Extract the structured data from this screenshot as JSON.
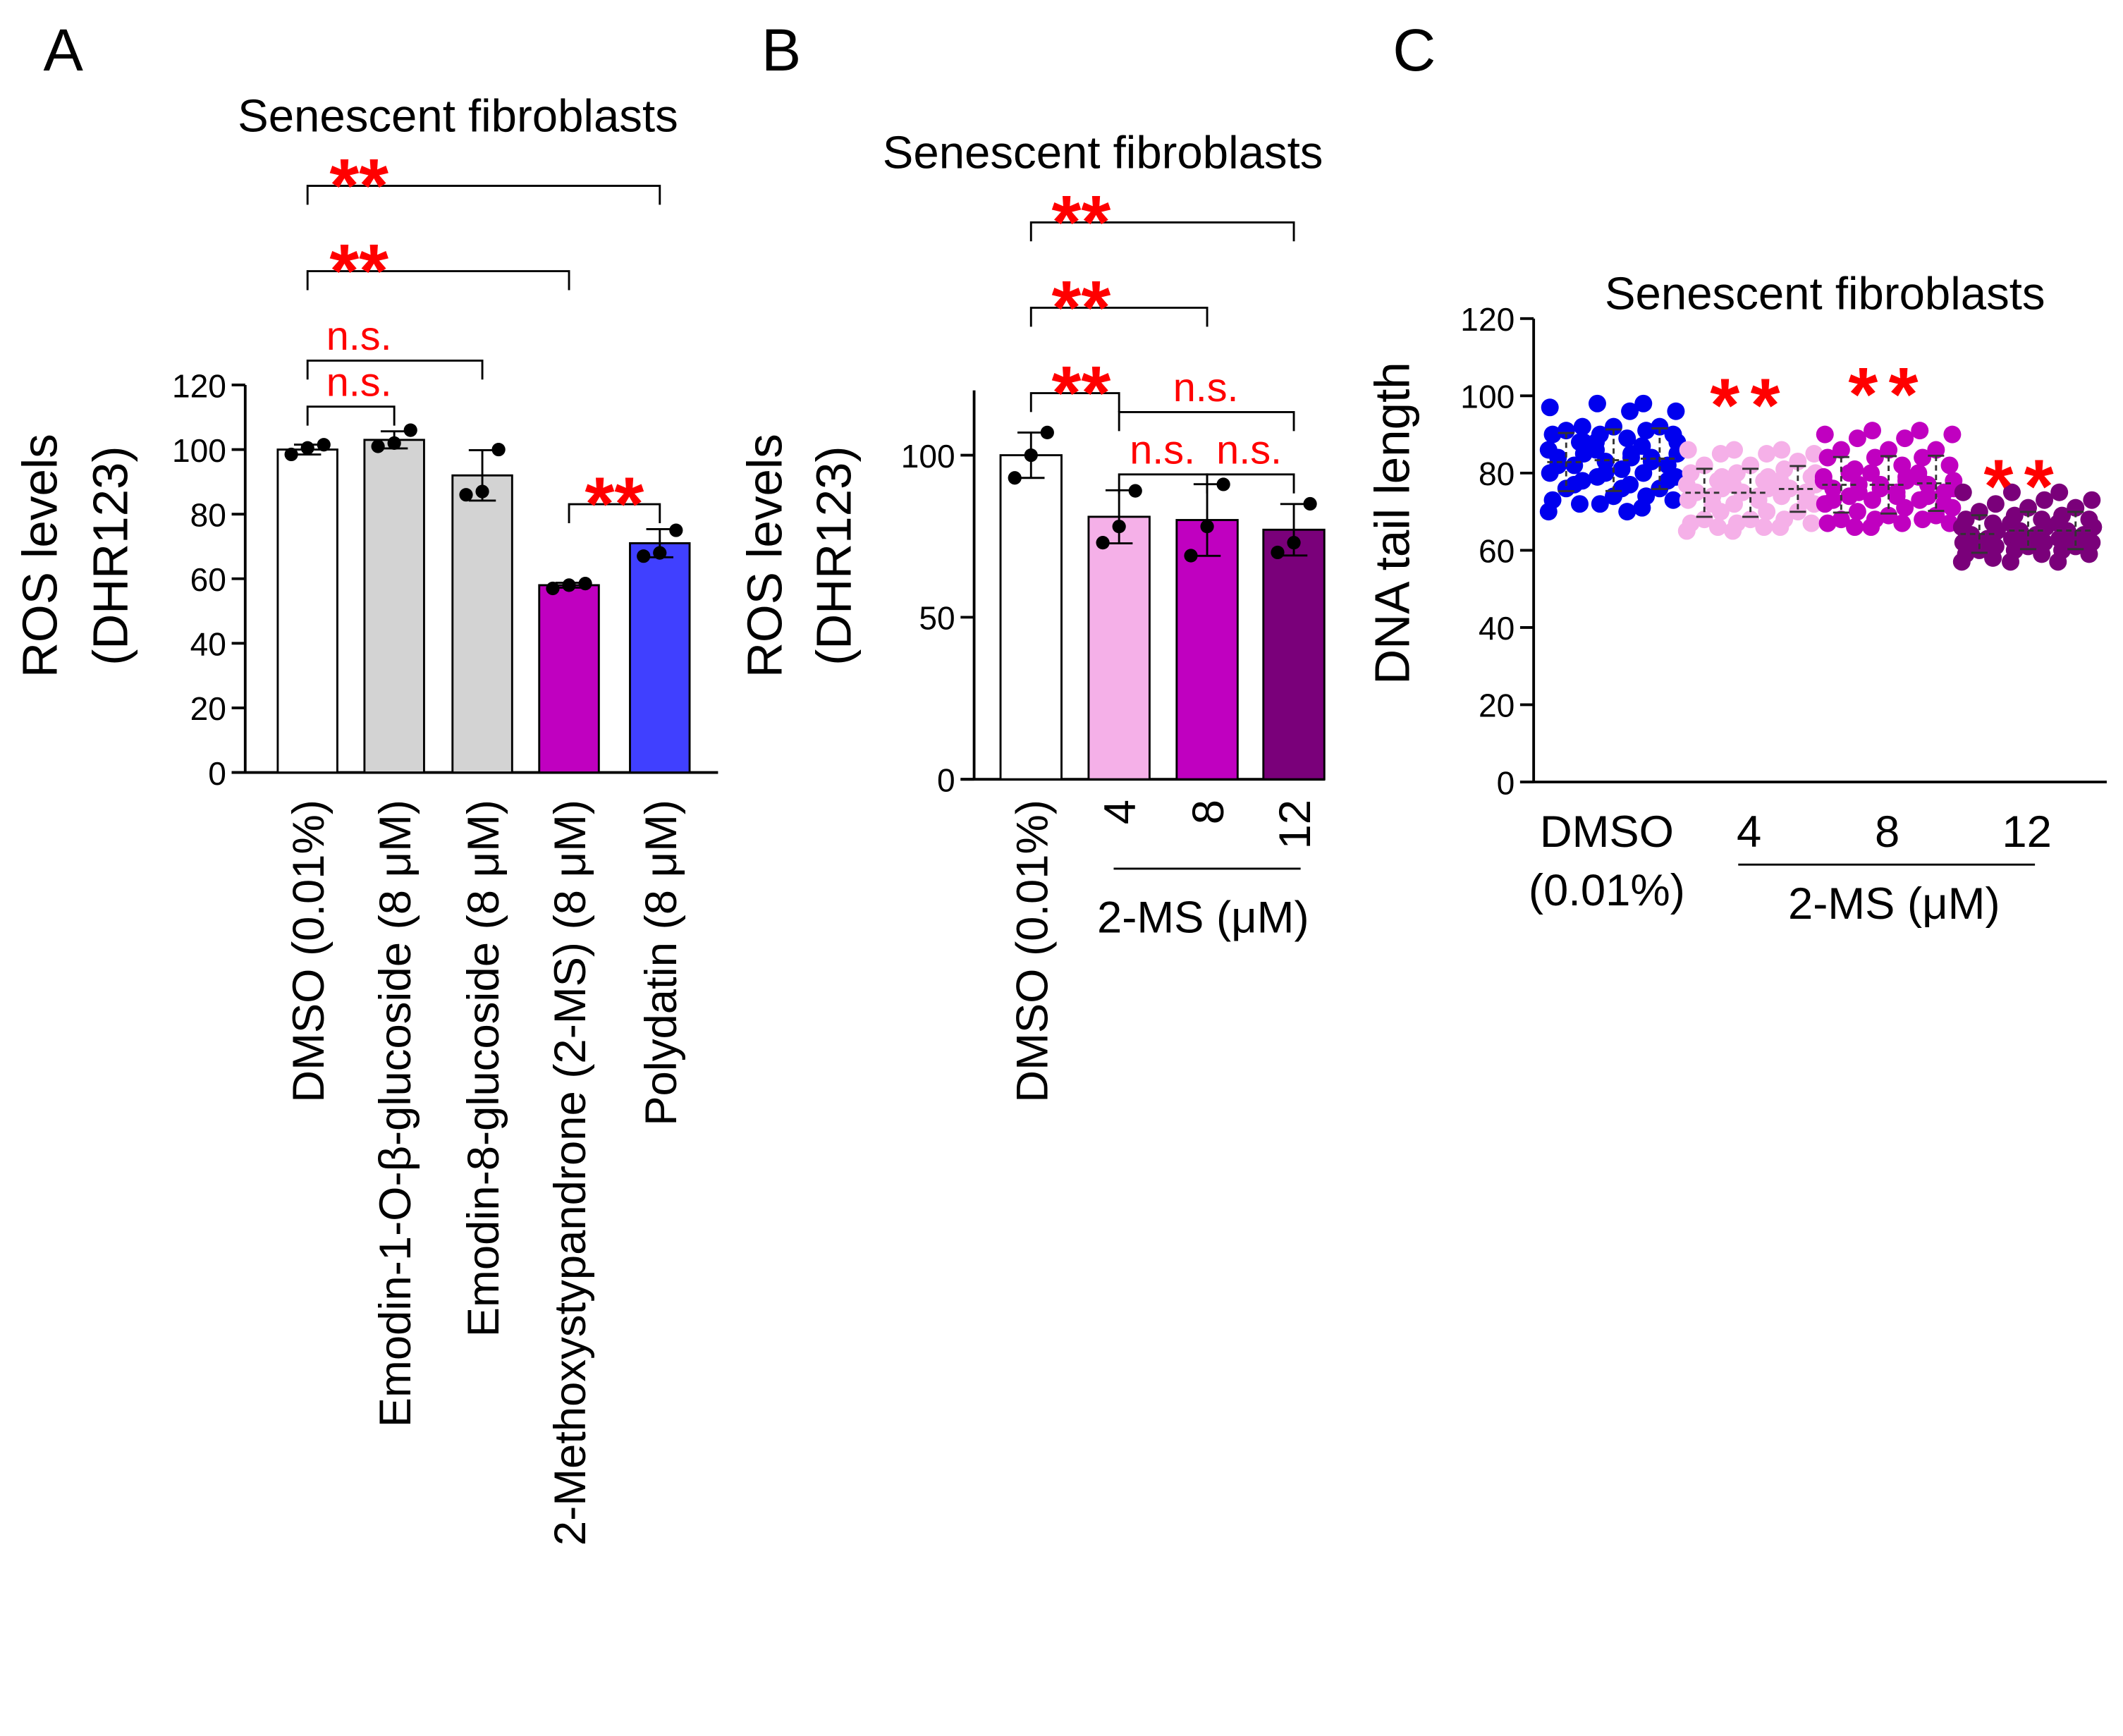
{
  "panels": {
    "a": "A",
    "b": "B",
    "c": "C"
  },
  "chart_data": [
    {
      "type": "bar",
      "title": "Senescent fibroblasts",
      "ylabel_line1": "ROS levels",
      "ylabel_line2": "(DHR123)",
      "ylim": [
        0,
        120
      ],
      "yticks": [
        0,
        20,
        40,
        60,
        80,
        100,
        120
      ],
      "categories": [
        "DMSO (0.01%)",
        "Emodin-1-O-β-glucoside (8 μM)",
        "Emodin-8-glucoside (8 μM)",
        "2-Methoxystypandrone (2-MS) (8 μM)",
        "Polydatin (8 μM)"
      ],
      "values": [
        100,
        103,
        92,
        58,
        71
      ],
      "points": [
        [
          98.5,
          100.5,
          101.5
        ],
        [
          101,
          102,
          106
        ],
        [
          86,
          87,
          100
        ],
        [
          57,
          58,
          58.5
        ],
        [
          67,
          68,
          75
        ]
      ],
      "colors": [
        "#ffffff",
        "#d3d3d3",
        "#d3d3d3",
        "#c000c0",
        "#4040ff"
      ],
      "comparisons": [
        {
          "from": 0,
          "to": 1,
          "label": "n.s."
        },
        {
          "from": 0,
          "to": 2,
          "label": "n.s."
        },
        {
          "from": 0,
          "to": 3,
          "label": "**"
        },
        {
          "from": 0,
          "to": 4,
          "label": "**"
        },
        {
          "from": 3,
          "to": 4,
          "label": "**"
        }
      ]
    },
    {
      "type": "bar",
      "title": "Senescent fibroblasts",
      "ylabel_line1": "ROS levels",
      "ylabel_line2": "(DHR123)",
      "ylim": [
        0,
        120
      ],
      "yticks": [
        0,
        50,
        100
      ],
      "categories": [
        "DMSO (0.01%)",
        "4",
        "8",
        "12"
      ],
      "group_label": "2-MS (μM)",
      "values": [
        100,
        81,
        80,
        77
      ],
      "points": [
        [
          93,
          100,
          107
        ],
        [
          73,
          78,
          89
        ],
        [
          69,
          78,
          91
        ],
        [
          70,
          73,
          85
        ]
      ],
      "colors": [
        "#ffffff",
        "#f5b0e8",
        "#c000c0",
        "#7a007a"
      ],
      "comparisons": [
        {
          "from": 0,
          "to": 1,
          "label": "**"
        },
        {
          "from": 0,
          "to": 2,
          "label": "**"
        },
        {
          "from": 0,
          "to": 3,
          "label": "**"
        },
        {
          "from": 1,
          "to": 3,
          "label": "n.s."
        },
        {
          "from": 1,
          "to": 2,
          "label": "n.s."
        },
        {
          "from": 2,
          "to": 3,
          "label": "n.s."
        }
      ]
    },
    {
      "type": "scatter",
      "title": "Senescent fibroblasts",
      "ylabel": "DNA tail length",
      "ylim": [
        0,
        120
      ],
      "yticks": [
        0,
        20,
        40,
        60,
        80,
        100,
        120
      ],
      "categories": [
        "DMSO",
        "4",
        "8",
        "12"
      ],
      "category_sub": "(0.01%)",
      "group_label": "2-MS (μM)",
      "colors": [
        "#0000ee",
        "#f5b0e8",
        "#c000c0",
        "#7a007a"
      ],
      "significance": [
        "",
        "**",
        "**",
        "**"
      ],
      "groups": [
        [
          [
            97,
            92,
            91,
            90,
            88,
            86,
            85,
            84,
            82,
            80,
            78,
            76,
            73,
            72,
            70,
            88,
            82,
            77
          ],
          [
            98,
            96,
            92,
            90,
            89,
            86,
            84,
            83,
            81,
            79,
            77,
            74,
            72,
            70,
            88,
            85,
            80,
            76
          ],
          [
            98,
            96,
            92,
            91,
            90,
            87,
            85,
            84,
            82,
            80,
            79,
            76,
            74,
            73,
            71,
            88,
            83,
            78
          ]
        ],
        [
          [
            86,
            85,
            82,
            80,
            78,
            77,
            76,
            75,
            74,
            73,
            70,
            68,
            67,
            66,
            65,
            79,
            75,
            72
          ],
          [
            86,
            85,
            82,
            80,
            78,
            77,
            76,
            75,
            74,
            72,
            70,
            68,
            67,
            66,
            65,
            79,
            75,
            73
          ],
          [
            86,
            85,
            83,
            81,
            79,
            78,
            77,
            76,
            75,
            74,
            72,
            70,
            68,
            67,
            66,
            80,
            76,
            73
          ]
        ],
        [
          [
            90,
            89,
            86,
            84,
            81,
            79,
            77,
            76,
            74,
            72,
            70,
            68,
            67,
            66,
            78,
            75,
            73,
            80
          ],
          [
            91,
            89,
            86,
            84,
            82,
            80,
            78,
            77,
            75,
            73,
            71,
            69,
            68,
            67,
            66,
            79,
            76,
            74
          ],
          [
            91,
            90,
            86,
            84,
            82,
            80,
            78,
            77,
            75,
            73,
            71,
            69,
            68,
            67,
            79,
            76,
            74,
            72
          ]
        ],
        [
          [
            75,
            72,
            70,
            68,
            67,
            66,
            65,
            64,
            63,
            62,
            61,
            60,
            59,
            58,
            57,
            65,
            63,
            61
          ],
          [
            75,
            73,
            71,
            69,
            68,
            67,
            66,
            65,
            64,
            63,
            62,
            61,
            60,
            59,
            57,
            66,
            64,
            62
          ],
          [
            75,
            73,
            71,
            69,
            68,
            67,
            66,
            65,
            64,
            63,
            62,
            61,
            60,
            59,
            57,
            66,
            64,
            62
          ]
        ]
      ]
    }
  ]
}
